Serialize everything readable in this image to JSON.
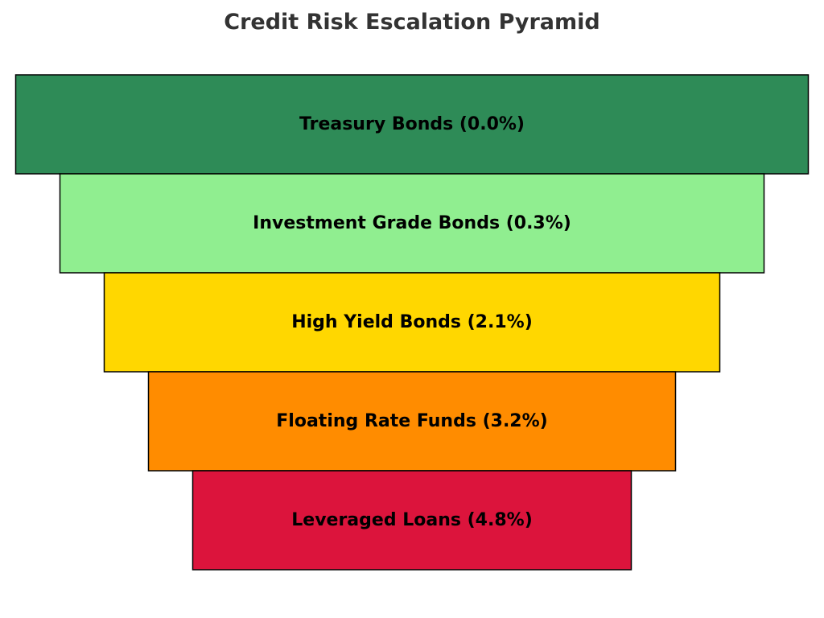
{
  "title": "Credit Risk Escalation Pyramid",
  "chart_data": {
    "type": "bar",
    "title": "Credit Risk Escalation Pyramid",
    "categories": [
      "Treasury Bonds",
      "Investment Grade Bonds",
      "High Yield Bonds",
      "Floating Rate Funds",
      "Leveraged Loans"
    ],
    "values": [
      0.0,
      0.3,
      2.1,
      3.2,
      4.8
    ],
    "labels": [
      "Treasury Bonds (0.0%)",
      "Investment Grade Bonds (0.3%)",
      "High Yield Bonds (2.1%)",
      "Floating Rate Funds (3.2%)",
      "Leveraged Loans (4.8%)"
    ],
    "colors": [
      "#2e8b57",
      "#90ee90",
      "#ffd700",
      "#ff8c00",
      "#dc143c"
    ],
    "grid": false
  }
}
